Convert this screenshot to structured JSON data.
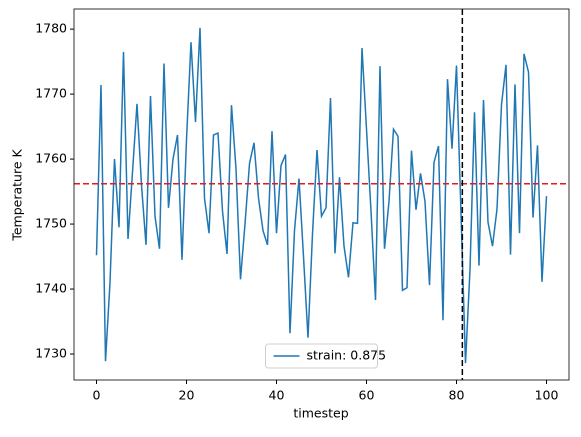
{
  "chart_data": {
    "type": "line",
    "xlabel": "timestep",
    "ylabel": "Temperature K",
    "x": [
      0,
      1,
      2,
      3,
      4,
      5,
      6,
      7,
      8,
      9,
      10,
      11,
      12,
      13,
      14,
      15,
      16,
      17,
      18,
      19,
      20,
      21,
      22,
      23,
      24,
      25,
      26,
      27,
      28,
      29,
      30,
      31,
      32,
      33,
      34,
      35,
      36,
      37,
      38,
      39,
      40,
      41,
      42,
      43,
      44,
      45,
      46,
      47,
      48,
      49,
      50,
      51,
      52,
      53,
      54,
      55,
      56,
      57,
      58,
      59,
      60,
      61,
      62,
      63,
      64,
      65,
      66,
      67,
      68,
      69,
      70,
      71,
      72,
      73,
      74,
      75,
      76,
      77,
      78,
      79,
      80,
      81,
      82,
      83,
      84,
      85,
      86,
      87,
      88,
      89,
      90,
      91,
      92,
      93,
      94,
      95,
      96,
      97,
      98,
      99,
      100
    ],
    "series": [
      {
        "name": "strain: 0.875",
        "color": "#1f77b4",
        "values": [
          1745.2,
          1771.4,
          1728.9,
          1741,
          1760,
          1749.5,
          1776.5,
          1747.7,
          1758,
          1768.5,
          1756,
          1746.8,
          1769.7,
          1751.2,
          1746.2,
          1774.7,
          1752.5,
          1760,
          1763.7,
          1744.5,
          1763,
          1778,
          1765.7,
          1780.2,
          1754,
          1748.6,
          1763.7,
          1764,
          1752,
          1745.4,
          1768.3,
          1758.5,
          1741.5,
          1750,
          1759.3,
          1762.5,
          1754,
          1749,
          1746.8,
          1764.3,
          1748.6,
          1759,
          1760.7,
          1733.2,
          1749,
          1757,
          1745,
          1732.5,
          1748.5,
          1761.4,
          1751.2,
          1752.5,
          1769.4,
          1745.5,
          1757.2,
          1746.6,
          1741.8,
          1750.2,
          1750.1,
          1777.1,
          1764.6,
          1752,
          1738.3,
          1774.3,
          1746.2,
          1753.5,
          1764.6,
          1763.5,
          1739.8,
          1740.2,
          1761.3,
          1752.2,
          1757.8,
          1753.5,
          1740.6,
          1759.5,
          1762,
          1735.2,
          1772.3,
          1761.6,
          1774.4,
          1751.6,
          1728.6,
          1743,
          1767.2,
          1743.6,
          1769.1,
          1750.3,
          1746.6,
          1752.3,
          1768.4,
          1774.5,
          1745.3,
          1771.5,
          1748.6,
          1776.2,
          1773.4,
          1751,
          1762.1,
          1741.1,
          1754.3
        ]
      }
    ],
    "hline": 1756.2,
    "hline_color": "#e31a1c",
    "vline": 81.3,
    "vline_color": "#000000",
    "xlim": [
      -5,
      105
    ],
    "ylim": [
      1726,
      1783.1
    ],
    "xticks": [
      0,
      20,
      40,
      60,
      80,
      100
    ],
    "yticks": [
      1730,
      1740,
      1750,
      1760,
      1770,
      1780
    ],
    "legend": "lower center"
  }
}
